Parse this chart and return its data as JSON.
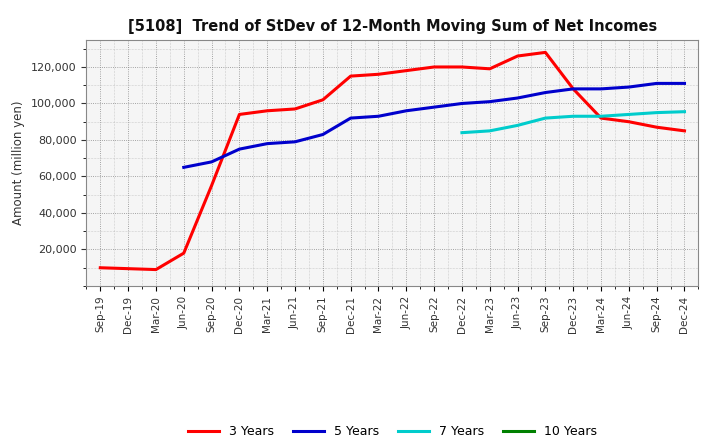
{
  "title": "[5108]  Trend of StDev of 12-Month Moving Sum of Net Incomes",
  "ylabel": "Amount (million yen)",
  "background_color": "#ffffff",
  "plot_bg_color": "#f5f5f5",
  "grid_color": "#aaaaaa",
  "ylim": [
    0,
    135000
  ],
  "yticks": [
    20000,
    40000,
    60000,
    80000,
    100000,
    120000
  ],
  "series": {
    "3 Years": {
      "color": "#ff0000",
      "x": [
        "Sep-19",
        "Dec-19",
        "Mar-20",
        "Jun-20",
        "Sep-20",
        "Dec-20",
        "Mar-21",
        "Jun-21",
        "Sep-21",
        "Dec-21",
        "Mar-22",
        "Jun-22",
        "Sep-22",
        "Dec-22",
        "Mar-23",
        "Jun-23",
        "Sep-23",
        "Dec-23",
        "Mar-24",
        "Jun-24",
        "Sep-24",
        "Dec-24"
      ],
      "y": [
        10000,
        9500,
        9000,
        18000,
        55000,
        94000,
        96000,
        97000,
        102000,
        115000,
        116000,
        118000,
        120000,
        120000,
        119000,
        126000,
        128000,
        108000,
        92000,
        90000,
        87000,
        85000
      ]
    },
    "5 Years": {
      "color": "#0000cc",
      "x": [
        "Jun-20",
        "Sep-20",
        "Dec-20",
        "Mar-21",
        "Jun-21",
        "Sep-21",
        "Dec-21",
        "Mar-22",
        "Jun-22",
        "Sep-22",
        "Dec-22",
        "Mar-23",
        "Jun-23",
        "Sep-23",
        "Dec-23",
        "Mar-24",
        "Jun-24",
        "Sep-24",
        "Dec-24"
      ],
      "y": [
        65000,
        68000,
        75000,
        78000,
        79000,
        83000,
        92000,
        93000,
        96000,
        98000,
        100000,
        101000,
        103000,
        106000,
        108000,
        108000,
        109000,
        111000,
        111000
      ]
    },
    "7 Years": {
      "color": "#00cccc",
      "x": [
        "Dec-22",
        "Mar-23",
        "Jun-23",
        "Sep-23",
        "Dec-23",
        "Mar-24",
        "Jun-24",
        "Sep-24",
        "Dec-24"
      ],
      "y": [
        84000,
        85000,
        88000,
        92000,
        93000,
        93000,
        94000,
        95000,
        95500
      ]
    },
    "10 Years": {
      "color": "#008000",
      "x": [],
      "y": []
    }
  },
  "x_labels": [
    "Sep-19",
    "Dec-19",
    "Mar-20",
    "Jun-20",
    "Sep-20",
    "Dec-20",
    "Mar-21",
    "Jun-21",
    "Sep-21",
    "Dec-21",
    "Mar-22",
    "Jun-22",
    "Sep-22",
    "Dec-22",
    "Mar-23",
    "Jun-23",
    "Sep-23",
    "Dec-23",
    "Mar-24",
    "Jun-24",
    "Sep-24",
    "Dec-24"
  ],
  "legend_order": [
    "3 Years",
    "5 Years",
    "7 Years",
    "10 Years"
  ]
}
